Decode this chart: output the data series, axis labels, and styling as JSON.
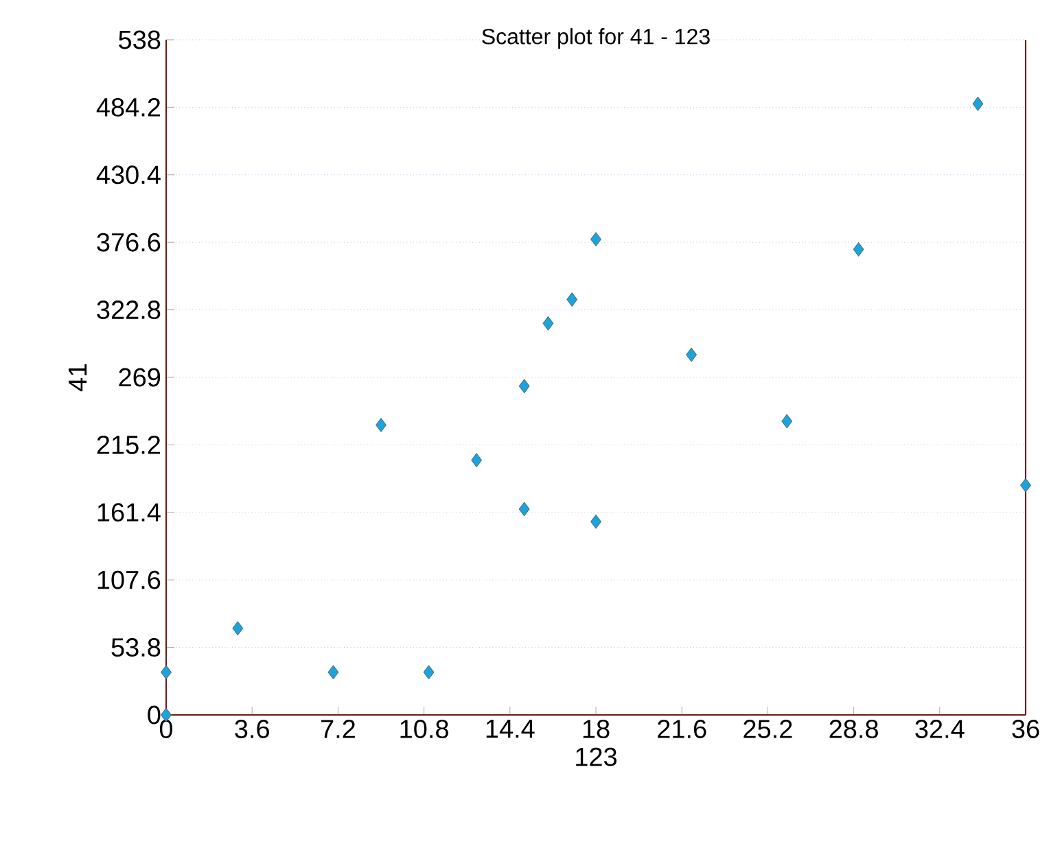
{
  "chart_data": {
    "type": "scatter",
    "title": "Scatter plot for 41 - 123",
    "xlabel": "123",
    "ylabel": "41",
    "x": [
      0,
      0,
      3,
      7,
      9,
      11,
      13,
      15,
      15,
      16,
      17,
      18,
      18,
      22,
      26,
      29,
      34,
      36
    ],
    "values": [
      34,
      0,
      69,
      34,
      231,
      34,
      203,
      164,
      262,
      312,
      331,
      379,
      154,
      287,
      234,
      371,
      487,
      183
    ],
    "color": "#1aa3dc",
    "marker": "diamond",
    "grid": "y",
    "xlim": [
      0,
      36
    ],
    "xticks": [
      0,
      3.6,
      7.2,
      10.8,
      14.4,
      18,
      21.6,
      25.2,
      28.8,
      32.4,
      36
    ],
    "ylim": [
      0,
      538
    ],
    "yticks": [
      0,
      53.8,
      107.6,
      161.4,
      215.2,
      269,
      322.8,
      376.6,
      430.4,
      484.2,
      538
    ]
  }
}
